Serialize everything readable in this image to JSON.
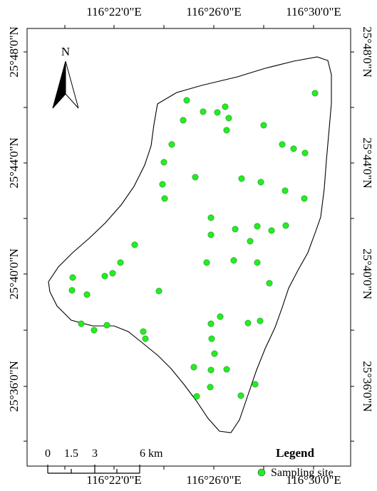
{
  "map": {
    "longitude_labels_top": [
      "116°22'0\"E",
      "116°26'0\"E",
      "116°30'0\"E"
    ],
    "longitude_labels_bottom": [
      "116°22'0\"E",
      "116°26'0\"E",
      "116°30'0\"E"
    ],
    "latitude_labels_left": [
      "25°48'0\"N",
      "25°44'0\"N",
      "25°40'0\"N",
      "25°36'0\"N"
    ],
    "latitude_labels_right": [
      "25°48'0\"N",
      "25°44'0\"N",
      "25°40'0\"N",
      "25°36'0\"N"
    ],
    "north_arrow_label": "N",
    "scale_bar": {
      "ticks": [
        "0",
        "1.5",
        "3",
        "6 km"
      ]
    },
    "legend": {
      "title": "Legend",
      "items": [
        {
          "label": "Sampling site",
          "color": "#22ee22"
        }
      ]
    },
    "site_color": "#22ee22",
    "site_count": 58
  }
}
